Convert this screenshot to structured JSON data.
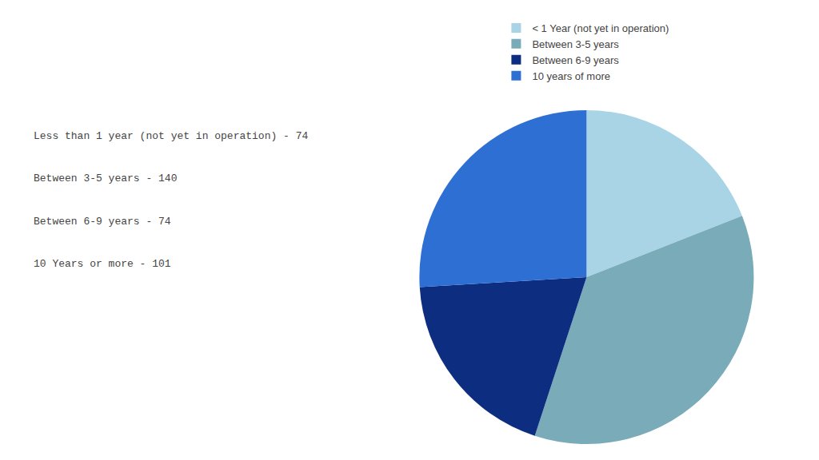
{
  "chart_data": {
    "type": "pie",
    "categories": [
      "< 1 Year (not yet in operation)",
      "Between 3-5 years",
      "Between 6-9 years",
      "10 years of more"
    ],
    "values": [
      74,
      140,
      74,
      101
    ],
    "colors": [
      "#a8d4e6",
      "#7aabb8",
      "#0d2d80",
      "#2e6fd4"
    ],
    "annotations": [
      "Less than 1 year (not yet in operation) - 74",
      "Between 3-5 years - 140",
      "Between 6-9 years - 74",
      "10 Years or more - 101"
    ],
    "legend": "top"
  }
}
